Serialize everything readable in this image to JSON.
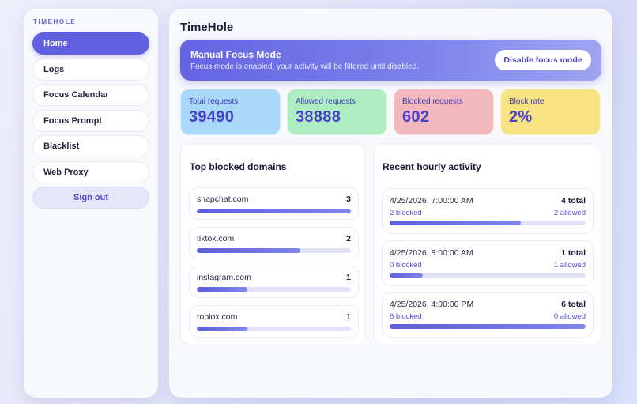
{
  "sidebar": {
    "brand": "TIMEHOLE",
    "items": [
      {
        "label": "Home",
        "active": true
      },
      {
        "label": "Logs",
        "active": false
      },
      {
        "label": "Focus Calendar",
        "active": false
      },
      {
        "label": "Focus Prompt",
        "active": false
      },
      {
        "label": "Blacklist",
        "active": false
      },
      {
        "label": "Web Proxy",
        "active": false
      }
    ],
    "sign_out": "Sign out"
  },
  "header": {
    "title": "TimeHole"
  },
  "focus_banner": {
    "title": "Manual Focus Mode",
    "description": "Focus mode is enabled, your activity will be filtered until disabled.",
    "button": "Disable focus mode"
  },
  "stats": [
    {
      "label": "Total requests",
      "value": "39490",
      "color": "#a9d8fb"
    },
    {
      "label": "Allowed requests",
      "value": "38888",
      "color": "#aeecc1"
    },
    {
      "label": "Blocked requests",
      "value": "602",
      "color": "#f3b8bd"
    },
    {
      "label": "Block rate",
      "value": "2%",
      "color": "#f8e382"
    }
  ],
  "top_blocked": {
    "title": "Top blocked domains",
    "items": [
      {
        "domain": "snapchat.com",
        "count": "3",
        "pct": 100
      },
      {
        "domain": "tiktok.com",
        "count": "2",
        "pct": 67
      },
      {
        "domain": "instagram.com",
        "count": "1",
        "pct": 33
      },
      {
        "domain": "roblox.com",
        "count": "1",
        "pct": 33
      }
    ]
  },
  "hourly": {
    "title": "Recent hourly activity",
    "items": [
      {
        "time": "4/25/2026, 7:00:00 AM",
        "total": "4 total",
        "blocked": "2 blocked",
        "allowed": "2 allowed",
        "pct": 67
      },
      {
        "time": "4/25/2026, 8:00:00 AM",
        "total": "1 total",
        "blocked": "0 blocked",
        "allowed": "1 allowed",
        "pct": 17
      },
      {
        "time": "4/25/2026, 4:00:00 PM",
        "total": "6 total",
        "blocked": "6 blocked",
        "allowed": "0 allowed",
        "pct": 100
      }
    ]
  },
  "colors": {
    "accent": "#5f5fe0",
    "accent_text": "#4840c8",
    "bar_track": "#e1e2f8"
  }
}
